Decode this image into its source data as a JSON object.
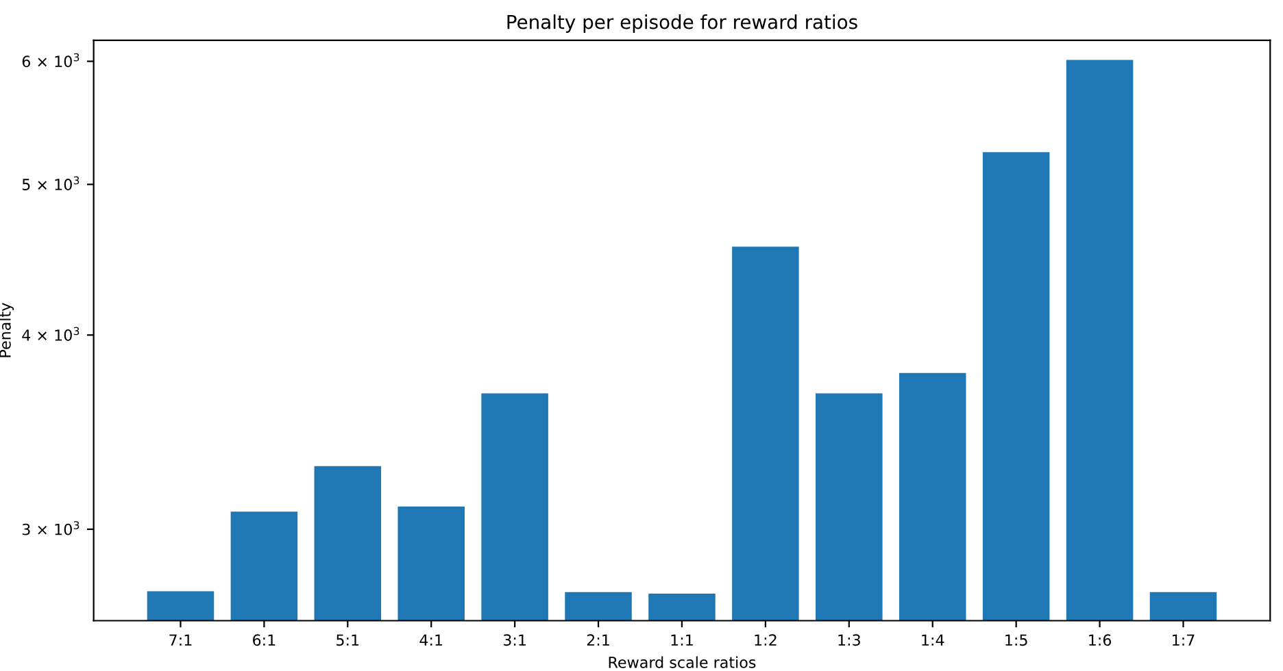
{
  "chart_data": {
    "type": "bar",
    "title": "Penalty per episode for reward ratios",
    "xlabel": "Reward scale ratios",
    "ylabel": "Penalty",
    "categories": [
      "7:1",
      "6:1",
      "5:1",
      "4:1",
      "3:1",
      "2:1",
      "1:1",
      "1:2",
      "1:3",
      "1:4",
      "1:5",
      "1:6",
      "1:7"
    ],
    "values": [
      2737,
      3079,
      3294,
      3103,
      3669,
      2733,
      2727,
      4560,
      3669,
      3781,
      5244,
      6012,
      2733
    ],
    "color": "#1f77b4",
    "log": true,
    "ylim": [
      2620,
      6190
    ],
    "yticks": [
      {
        "value": 3000,
        "label": "3 × 10$^{3}$"
      },
      {
        "value": 4000,
        "label": "4 × 10$^{3}$"
      },
      {
        "value": 5000,
        "label": "5 × 10$^{3}$"
      },
      {
        "value": 6000,
        "label": "6 × 10$^{3}$"
      }
    ],
    "grid": false
  }
}
